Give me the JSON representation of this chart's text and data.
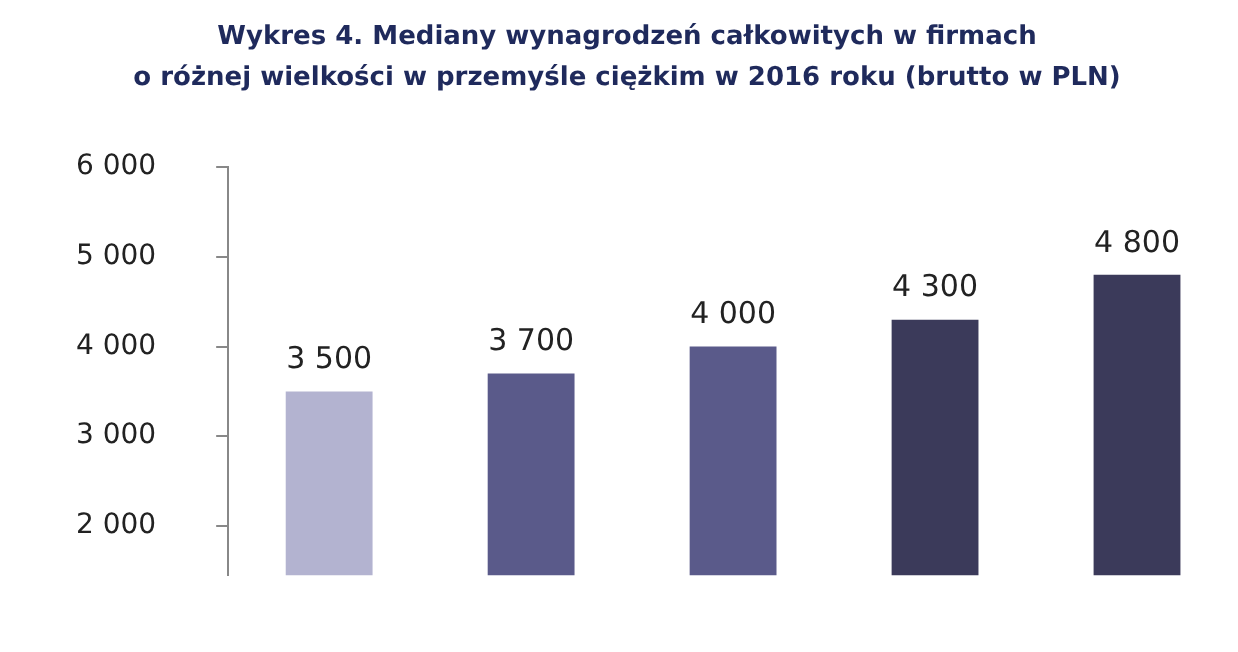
{
  "chart_data": {
    "type": "bar",
    "title": "Wykres 4. Mediany wynagrodzeń całkowitych w firmach\no różnej wielkości w przemyśle ciężkim w 2016 roku (brutto w PLN)",
    "categories": [
      null,
      null,
      null,
      null,
      null
    ],
    "values": [
      3500,
      3700,
      4000,
      4300,
      4800
    ],
    "colors": [
      "#b3b3d0",
      "#5a5a8a",
      "#5a5a8a",
      "#3b3a5a",
      "#3b3a5a"
    ],
    "value_labels": [
      "3 500",
      "3 700",
      "4 000",
      "4 300",
      "4 800"
    ],
    "ylim": [
      1450,
      6000
    ],
    "yticks": [
      {
        "value": 2000,
        "label": "2 000"
      },
      {
        "value": 3000,
        "label": "3 000"
      },
      {
        "value": 4000,
        "label": "4 000"
      },
      {
        "value": 5000,
        "label": "5 000"
      },
      {
        "value": 6000,
        "label": "6 000"
      }
    ],
    "tick_labels": "y",
    "grid": false,
    "legend": false
  }
}
